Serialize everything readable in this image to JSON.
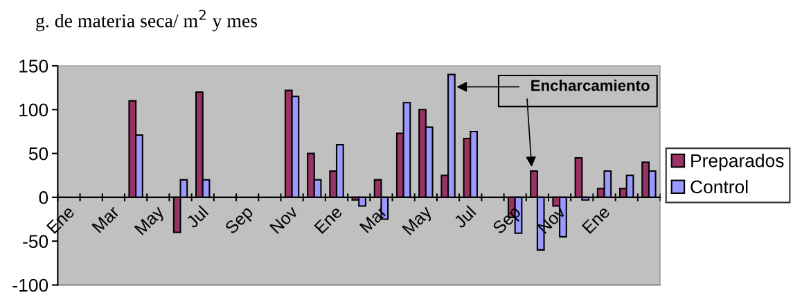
{
  "chart_data": {
    "type": "bar",
    "title": "g. de materia seca/ m$^{2}$ y mes",
    "categories": [
      "Ene",
      null,
      "Mar",
      null,
      "May",
      null,
      "Jul",
      null,
      "Sep",
      null,
      "Nov",
      null,
      "Ene",
      null,
      "Mar",
      null,
      "May",
      null,
      "Jul",
      null,
      "Sep",
      null,
      "Nov",
      null,
      "Ene",
      null,
      null
    ],
    "series": [
      {
        "name": "Preparados",
        "color": "#993366",
        "values": [
          null,
          null,
          null,
          110,
          null,
          -40,
          120,
          null,
          null,
          null,
          122,
          50,
          30,
          -3,
          20,
          73,
          100,
          25,
          67,
          null,
          -23,
          30,
          -10,
          45,
          10,
          10,
          40
        ]
      },
      {
        "name": "Control",
        "color": "#9999ff",
        "values": [
          null,
          null,
          null,
          71,
          null,
          20,
          20,
          null,
          null,
          null,
          115,
          20,
          60,
          -10,
          -25,
          108,
          80,
          140,
          75,
          null,
          -41,
          -60,
          -45,
          -3,
          30,
          25,
          30
        ]
      }
    ],
    "ylim": [
      -100,
      150
    ],
    "yticks": [
      -100,
      -50,
      0,
      50,
      100,
      150
    ],
    "grid": false,
    "legend": "right",
    "annotations": [
      "Encharcamiento"
    ]
  }
}
